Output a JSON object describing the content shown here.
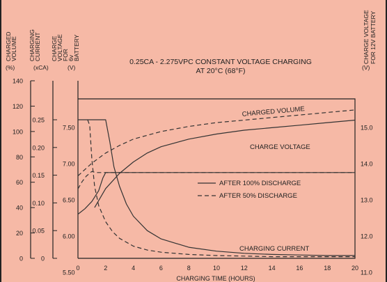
{
  "chart_data": {
    "type": "line",
    "title": "0.25CA - 2.275VPC CONSTANT VOLTAGE CHARGING",
    "subtitle": "AT 20°C (68°F)",
    "xlabel": "CHARGING TIME (HOURS)",
    "x_ticks": [
      "0",
      "2",
      "4",
      "6",
      "8",
      "10",
      "12",
      "14",
      "16",
      "18",
      "20"
    ],
    "xlim": [
      0,
      20
    ],
    "axes": [
      {
        "name": "CHARGED VOLUME",
        "unit": "(%)",
        "ticks": [
          "140",
          "120",
          "100",
          "80",
          "60",
          "40",
          "20",
          "0"
        ],
        "range": [
          0,
          140
        ]
      },
      {
        "name": "CHARGING CURRENT",
        "unit": "(xCA)",
        "ticks": [
          "0.25",
          "0.20",
          "0.15",
          "0.10",
          "0.05",
          "0"
        ],
        "range": [
          0,
          0.25
        ]
      },
      {
        "name": "CHARGE VOLTAGE FOR 6v BATTERY",
        "unit": "(V)",
        "ticks": [
          "7.50",
          "7.00",
          "6.50",
          "6.00",
          "5.50"
        ],
        "range": [
          5.5,
          7.5
        ]
      },
      {
        "name": "CHARGE VOLTAGE FOR 12V BATTERY",
        "unit": "(V)",
        "ticks": [
          "15.0",
          "14.0",
          "13.0",
          "12.0",
          "11.0"
        ],
        "range": [
          11.0,
          15.0
        ]
      }
    ],
    "curve_labels": [
      "CHARGED VOLUME",
      "CHARGE VOLTAGE",
      "CHARGING CURRENT"
    ],
    "legend": [
      {
        "label": "AFTER 100% DISCHARGE",
        "style": "solid"
      },
      {
        "label": "AFTER 50% DISCHARGE",
        "style": "dashed"
      }
    ],
    "legend_position": "center-right",
    "series": [
      {
        "curve": "charge-voltage",
        "discharge": "100%",
        "axis": "v12",
        "x": [
          0,
          0.5,
          1,
          1.5,
          1.8,
          2,
          20
        ],
        "y": [
          12.6,
          12.75,
          12.95,
          13.25,
          13.6,
          13.75,
          13.75
        ]
      },
      {
        "curve": "charge-voltage",
        "discharge": "50%",
        "axis": "v12",
        "x": [
          0,
          0.3,
          0.6,
          1.0,
          1.3,
          1.6,
          2,
          20
        ],
        "y": [
          13.3,
          13.5,
          13.65,
          13.78,
          13.75,
          13.75,
          13.75,
          13.75
        ]
      },
      {
        "curve": "charged-volume",
        "discharge": "100%",
        "axis": "pct",
        "x": [
          1.2,
          2,
          3,
          4,
          5,
          6,
          8,
          10,
          12,
          14,
          16,
          18,
          20
        ],
        "y": [
          40,
          55,
          67,
          76,
          83,
          88,
          94,
          98,
          101,
          103,
          105,
          107,
          109
        ]
      },
      {
        "curve": "charged-volume",
        "discharge": "50%",
        "axis": "pct",
        "x": [
          0,
          1,
          2,
          3,
          4,
          5,
          6,
          8,
          10,
          12,
          14,
          16,
          18,
          20
        ],
        "y": [
          65,
          75,
          83,
          89,
          94,
          97,
          100,
          104,
          107,
          109,
          111,
          113,
          115,
          117
        ]
      },
      {
        "curve": "charging-current",
        "discharge": "100%",
        "axis": "xca",
        "x": [
          0,
          2,
          2.3,
          2.6,
          3,
          3.5,
          4,
          5,
          6,
          8,
          10,
          12,
          14,
          16,
          18,
          20
        ],
        "y": [
          0.25,
          0.25,
          0.21,
          0.165,
          0.13,
          0.098,
          0.076,
          0.05,
          0.035,
          0.02,
          0.013,
          0.009,
          0.007,
          0.006,
          0.005,
          0.005
        ]
      },
      {
        "curve": "charging-current",
        "discharge": "50%",
        "axis": "xca",
        "x": [
          0.7,
          0.85,
          1.0,
          1.2,
          1.5,
          2,
          2.5,
          3,
          4,
          5,
          6,
          8,
          10,
          12,
          14,
          16,
          18,
          20
        ],
        "y": [
          0.25,
          0.24,
          0.18,
          0.13,
          0.095,
          0.066,
          0.048,
          0.036,
          0.022,
          0.015,
          0.011,
          0.007,
          0.005,
          0.004,
          0.003,
          0.003,
          0.003,
          0.003
        ]
      }
    ]
  }
}
